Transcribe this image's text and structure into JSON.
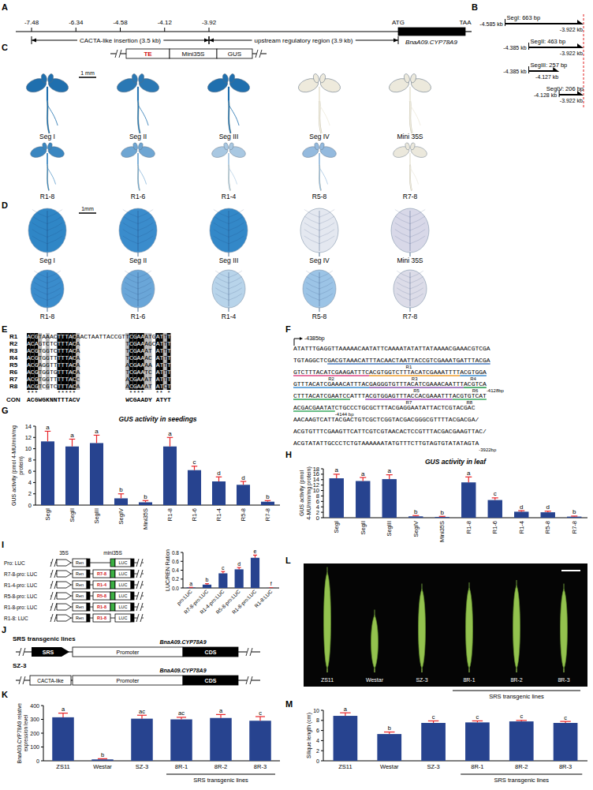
{
  "panel_labels": [
    "A",
    "B",
    "C",
    "D",
    "E",
    "F",
    "G",
    "H",
    "I",
    "J",
    "K",
    "L",
    "M"
  ],
  "panel_a": {
    "positions": [
      -7.48,
      -6.34,
      -4.58,
      -4.12,
      -3.92
    ],
    "start_codon": "ATG",
    "stop_codon": "TAA",
    "insertion": "CACTA-like insertion (3.5 kb)",
    "upstream": "upstream regulatory region (3.9 kb)",
    "gene": "BnaA09.CYP78A9"
  },
  "panel_b": {
    "segments": [
      {
        "name": "SegI: 663 bp",
        "start": {
          "value": -4.585,
          "label": "-4.585 kb"
        },
        "end": {
          "value": -3.922,
          "label": "-3.922 kb"
        }
      },
      {
        "name": "SegII: 463 bp",
        "start": {
          "value": -4.385,
          "label": "-4.385 kb"
        },
        "end": {
          "value": -3.922,
          "label": "-3.922 kb"
        }
      },
      {
        "name": "SegIII: 257 bp",
        "start": {
          "value": -4.385,
          "label": "-4.385 kb"
        },
        "end": {
          "value": -4.127,
          "label": "-4.127 kb"
        }
      },
      {
        "name": "SegIV: 206 bp",
        "start": {
          "value": -4.128,
          "label": "-4.128 kb"
        },
        "end": {
          "value": -3.922,
          "label": "-3.922 kb"
        }
      }
    ]
  },
  "panel_c": {
    "construct": [
      "TE",
      "Mini35S",
      "GUS"
    ],
    "scale_bar": "1 mm",
    "samples": [
      {
        "label": "Seg I",
        "color": "#1f6fae"
      },
      {
        "label": "Seg II",
        "color": "#2a78b4"
      },
      {
        "label": "Seg III",
        "color": "#1f6fae"
      },
      {
        "label": "Seg IV",
        "color": "#eeeadc"
      },
      {
        "label": "Mini 35S",
        "color": "#ece9dc"
      },
      {
        "label": "R1-8",
        "color": "#3a86c0"
      },
      {
        "label": "R1-6",
        "color": "#6fa6d3"
      },
      {
        "label": "R1-4",
        "color": "#a9c8e2"
      },
      {
        "label": "R5-8",
        "color": "#94bade"
      },
      {
        "label": "R7-8",
        "color": "#ebe8dc"
      }
    ]
  },
  "panel_d": {
    "scale_bar": "1mm",
    "samples": [
      {
        "label": "Seg I",
        "color": "#2f86c6"
      },
      {
        "label": "Seg II",
        "color": "#3a8ccc"
      },
      {
        "label": "Seg III",
        "color": "#3388c8"
      },
      {
        "label": "Seg IV",
        "color": "#e4e8f0"
      },
      {
        "label": "Mini 35S",
        "color": "#d8d8e8"
      },
      {
        "label": "R1-8",
        "color": "#3a8ccc"
      },
      {
        "label": "R1-6",
        "color": "#6aa6d8"
      },
      {
        "label": "R1-4",
        "color": "#b8d4ea"
      },
      {
        "label": "R5-8",
        "color": "#9cc4e6"
      },
      {
        "label": "R7-8",
        "color": "#dcdce8"
      }
    ]
  },
  "panel_e": {
    "rows": [
      {
        "label": "R1",
        "seq": "ACGTAAACTTTACAACTAATTACCGTTCGAAATGATTT"
      },
      {
        "label": "R2",
        "seq": "ACAGTCTCTTTACA            TCGAAAGCATTT"
      },
      {
        "label": "R3",
        "seq": "ACGTGGTCTTTACA            TCGAAAT ATTT"
      },
      {
        "label": "R4",
        "seq": "ACGTGGTTTTTACA            TCGAAAC ATTT"
      },
      {
        "label": "R5",
        "seq": "ACGAGGTTTTTACA            ACGAAAA ATTT"
      },
      {
        "label": "R6",
        "seq": "ACGTGGTGTTTACA            TCGAATC ATTT"
      },
      {
        "label": "R7",
        "seq": "ACGTGGTTTTTACC            ACGAAAT ATTT"
      },
      {
        "label": "R8",
        "seq": "ACGTCGTCTTTACA            ACGAAAT ATCT"
      }
    ],
    "stars": "***     *****              ****   ** *",
    "consensus_label": "CON",
    "consensus": "ACGWGKNNTTTACV            WCGAADY ATYT"
  },
  "panel_f": {
    "start": "-4385bp",
    "motifs": [
      {
        "label": "R1",
        "color": "#4a7cc0"
      },
      {
        "label": "R2",
        "color": "#e24a86"
      },
      {
        "label": "R3",
        "color": "#f0a030"
      },
      {
        "label": "R4",
        "color": "#3f8fd0"
      },
      {
        "label": "R5",
        "color": "#8a58b0"
      },
      {
        "label": "R6",
        "color": "#2f9e55"
      },
      {
        "label": "R7",
        "color": "#a04ab8"
      },
      {
        "label": "R8",
        "color": "#3aa860"
      }
    ],
    "lines": [
      [
        {
          "text": "ATATTTGAGGTTAAAAACAATATTCAAAATATATTATAAAACGAAACGTCGA"
        }
      ],
      [
        {
          "text": "TGTAGGCTC"
        },
        {
          "text": "GACGTAAACATTTACAACTAATTACCGTCGAAATGATTTACGA",
          "motif": "R1"
        }
      ],
      [
        {
          "text": "GTCTTTACATCGAAGATTTC",
          "motif": "R2"
        },
        {
          "text": "ACGTGGTCTTTACATCGAAATTTT",
          "motif": "R3"
        },
        {
          "text": "ACGTGGA",
          "motif": "R4"
        }
      ],
      [
        {
          "text": "GTTTACATCGAAACATTTAC",
          "motif": "R4"
        },
        {
          "text": "GAGGGTGTTTACATCGAAACAATTT",
          "motif": "R5"
        },
        {
          "text": "ACGTCA",
          "motif": "R6"
        },
        {
          "coord": "-4128bp"
        }
      ],
      [
        {
          "text": "CTTTACATCGAATCC",
          "motif": "R6"
        },
        {
          "text": "ATTT"
        },
        {
          "text": "ACGTGGAGTTTACCACGAAATTT",
          "motif": "R7"
        },
        {
          "text": "ACGTGTCAT",
          "motif": "R8"
        }
      ],
      [
        {
          "text": "ACGACGAATAT",
          "motif": "R8"
        },
        {
          "coord": "-4144 bp"
        },
        {
          "text": "CTGCCCTGCGCTTTACGAGGAATATTACTCGTACGAC"
        }
      ],
      [
        {
          "text": "AACAAGTCATTACGACTGTCGCTCGGTACGACGGGCGTTTTACGACGA/"
        }
      ],
      [
        {
          "text": "ACGTGTTTCGAAGTTCATTCGTCGTAACACTCCGTTTACGACGAAGTTAC/"
        }
      ],
      [
        {
          "text": "ACGTATATTGCCCTCTGTAAAAAATATGTTTCTTGTAGTGTATATAGTA"
        },
        {
          "coord": "-3922bp"
        }
      ]
    ]
  },
  "panel_i": {
    "p35s": "35S",
    "mini": "mini35S",
    "ren": "Ren",
    "luc": "LUC",
    "rows": [
      {
        "label": "Pro: LUC",
        "insert": null,
        "mini35s": true
      },
      {
        "label": "R7-8-pro: LUC",
        "insert": "R7-8",
        "mini35s": true
      },
      {
        "label": "R1-4-pro: LUC",
        "insert": "R1-4",
        "mini35s": true
      },
      {
        "label": "R5-8-pro: LUC",
        "insert": "R5-8",
        "mini35s": true
      },
      {
        "label": "R1-8-pro: LUC",
        "insert": "R1-8",
        "mini35s": true
      },
      {
        "label": "R1-8: LUC",
        "insert": "R1-8",
        "mini35s": false
      }
    ]
  },
  "panel_j": {
    "title": "SRS transgenic lines",
    "srs": "SRS",
    "promoter": "Promoter",
    "cds": "CDS",
    "gene": "BnaA09.CYP78A9",
    "control": "SZ-3",
    "insertion": "CACTA-like"
  },
  "panel_l": {
    "labels": [
      "ZS11",
      "Westar",
      "SZ-3",
      "8R-1",
      "8R-2",
      "8R-3"
    ],
    "group": {
      "label": "SRS transgenic lines",
      "members": [
        "8R-1",
        "8R-2",
        "8R-3"
      ]
    }
  },
  "chart_data": [
    {
      "type": "bar",
      "title": "GUS activity in seedings",
      "y_label": "GUS activity (pmol 4-MU/min/mg protein)",
      "categories": [
        "SegI",
        "SegII",
        "SegIII",
        "SegIV",
        "Mini35S",
        "R1-8",
        "R1-6",
        "R1-4",
        "R5-8",
        "R7-8"
      ],
      "values": [
        11.3,
        10.4,
        11.0,
        1.2,
        0.5,
        10.4,
        6.2,
        4.2,
        3.6,
        0.6
      ],
      "errors": [
        1.8,
        1.3,
        1.4,
        0.8,
        0.3,
        1.6,
        0.7,
        0.8,
        0.6,
        0.2
      ],
      "significance": [
        "a",
        "a",
        "a",
        "b",
        "b",
        "a",
        "c",
        "d",
        "d",
        "b"
      ],
      "color": "#27438f",
      "ylim": [
        0,
        14
      ],
      "yticks": [
        0,
        2,
        4,
        6,
        8,
        10,
        12,
        14
      ]
    },
    {
      "type": "bar",
      "title": "GUS activity in leaf",
      "y_label": "GUS activity (pmol 4-MU/min/mg protein)",
      "categories": [
        "SegI",
        "SegII",
        "SegIII",
        "SegIV",
        "Mini35S",
        "R1-8",
        "R1-6",
        "R1-4",
        "R5-8",
        "R7-8"
      ],
      "values": [
        14.5,
        13.5,
        14.2,
        0.5,
        0.3,
        13.0,
        6.5,
        2.2,
        2.0,
        0.4
      ],
      "errors": [
        1.5,
        1.3,
        1.6,
        0.3,
        0.2,
        2.0,
        0.8,
        0.4,
        0.4,
        0.2
      ],
      "significance": [
        "a",
        "a",
        "a",
        "b",
        "b",
        "a",
        "c",
        "d",
        "d",
        "b"
      ],
      "color": "#27438f",
      "ylim": [
        0,
        18
      ],
      "yticks": [
        0,
        2,
        4,
        6,
        8,
        10,
        12,
        14,
        16,
        18
      ]
    },
    {
      "type": "bar",
      "y_label": "LUC/REN Ration",
      "categories": [
        "pro:LUC",
        "R7-8-pro:LUC",
        "R1-4-pro:LUC",
        "R5-8-pro:LUC",
        "R1-8-pro:LUC",
        "R1-8:LUC"
      ],
      "values": [
        0.012,
        0.075,
        0.33,
        0.42,
        0.68,
        0.003
      ],
      "errors": [
        0.002,
        0.02,
        0.04,
        0.04,
        0.06,
        0.001
      ],
      "significance": [
        "a",
        "b",
        "c",
        "d",
        "e",
        "f"
      ],
      "color": "#27438f",
      "ylim": [
        0,
        0.8
      ],
      "yticks": [
        {
          "value": 0,
          "label": "0.0"
        },
        0.2,
        0.4,
        0.6,
        0.8
      ]
    },
    {
      "type": "bar",
      "y_label": "BnaA09.CYP78A9 relative expression level",
      "categories": [
        "ZS11",
        "Westar",
        "SZ-3",
        "8R-1",
        "8R-2",
        "8R-3"
      ],
      "values": [
        315,
        10,
        305,
        300,
        310,
        290
      ],
      "errors": [
        30,
        5,
        25,
        15,
        25,
        30
      ],
      "significance": [
        "a",
        "b",
        "ac",
        "ac",
        "a",
        "c"
      ],
      "color": "#27438f",
      "ylim": [
        0,
        400
      ],
      "yticks": [
        0,
        100,
        200,
        300,
        400
      ],
      "groups": [
        {
          "label": "SRS transgenic lines",
          "members": [
            "8R-1",
            "8R-2",
            "8R-3"
          ]
        }
      ]
    },
    {
      "type": "bar",
      "y_label": "Silique length (cm)",
      "categories": [
        "ZS11",
        "Westar",
        "SZ-3",
        "8R-1",
        "8R-2",
        "8R-3"
      ],
      "values": [
        8.9,
        5.3,
        7.5,
        7.6,
        7.8,
        7.5
      ],
      "errors": [
        0.6,
        0.4,
        0.4,
        0.3,
        0.2,
        0.3
      ],
      "significance": [
        "a",
        "b",
        "c",
        "c",
        "c",
        "c"
      ],
      "color": "#27438f",
      "ylim": [
        0,
        10
      ],
      "yticks": [
        0,
        2,
        4,
        6,
        8,
        10
      ],
      "groups": [
        {
          "label": "SRS transgenic lines",
          "members": [
            "8R-1",
            "8R-2",
            "8R-3"
          ]
        }
      ]
    }
  ]
}
